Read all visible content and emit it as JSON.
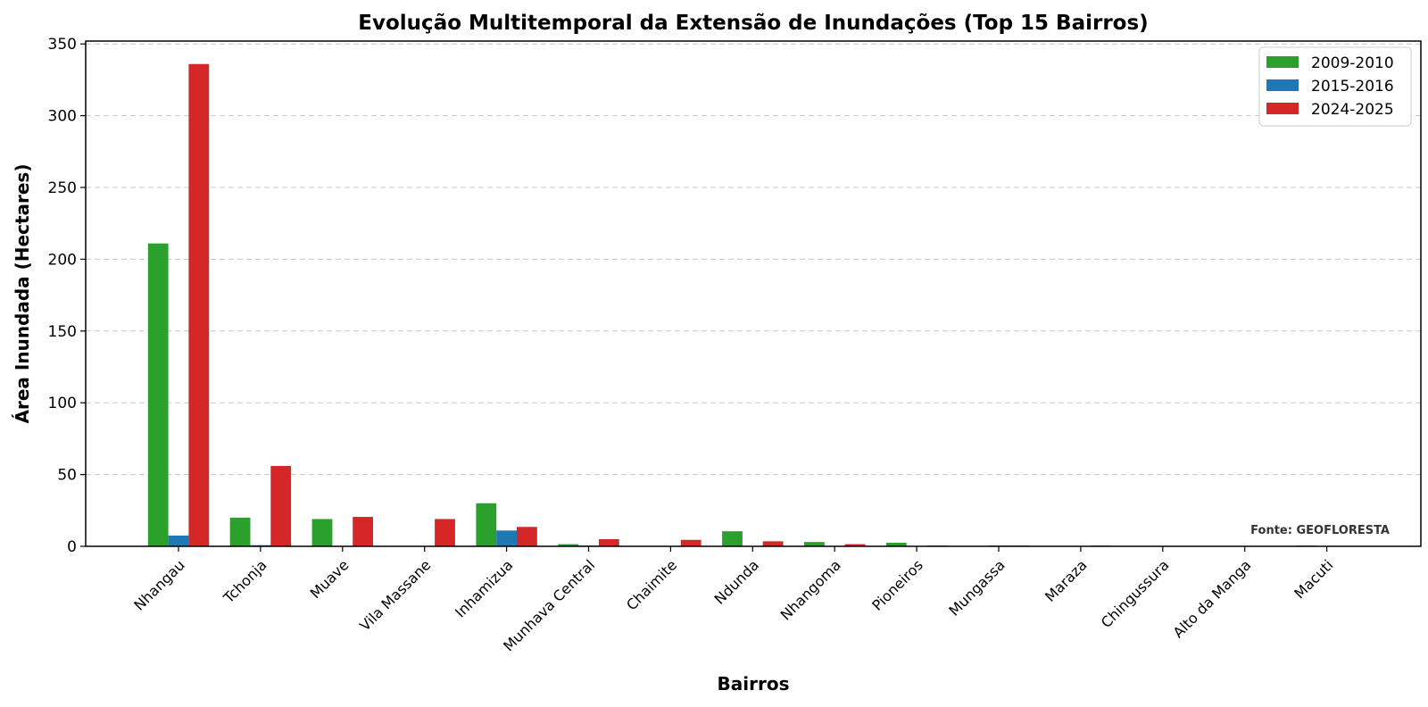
{
  "chart_data": {
    "type": "bar",
    "title": "Evolução Multitemporal da Extensão de Inundações (Top 15 Bairros)",
    "xlabel": "Bairros",
    "ylabel": "Área Inundada (Hectares)",
    "ylim": [
      0,
      352
    ],
    "yticks": [
      0,
      50,
      100,
      150,
      200,
      250,
      300,
      350
    ],
    "grid": "horizontal dashed",
    "legend_position": "top-right",
    "source_note": "Fonte: GEOFLORESTA",
    "categories": [
      "Nhangau",
      "Tchonja",
      "Muave",
      "Vila Massane",
      "Inhamizua",
      "Munhava Central",
      "Chaimite",
      "Ndunda",
      "Nhangoma",
      "Pioneiros",
      "Mungassa",
      "Maraza",
      "Chingussura",
      "Alto da Manga",
      "Macuti"
    ],
    "series": [
      {
        "name": "2009-2010",
        "color": "#2ca02c",
        "values": [
          211,
          20,
          19,
          0,
          30,
          1.5,
          0,
          10.5,
          3,
          2.5,
          0,
          0,
          0,
          0,
          0.5
        ]
      },
      {
        "name": "2015-2016",
        "color": "#1f77b4",
        "values": [
          7.5,
          0.8,
          0.3,
          0,
          11,
          0.5,
          0,
          0.2,
          0,
          0,
          0.5,
          0,
          0,
          0,
          0.3
        ]
      },
      {
        "name": "2024-2025",
        "color": "#d62728",
        "values": [
          336,
          56,
          20.5,
          19,
          13.5,
          5,
          4.5,
          3.5,
          1.5,
          0.5,
          0.5,
          0.5,
          0,
          0,
          0
        ]
      }
    ]
  }
}
